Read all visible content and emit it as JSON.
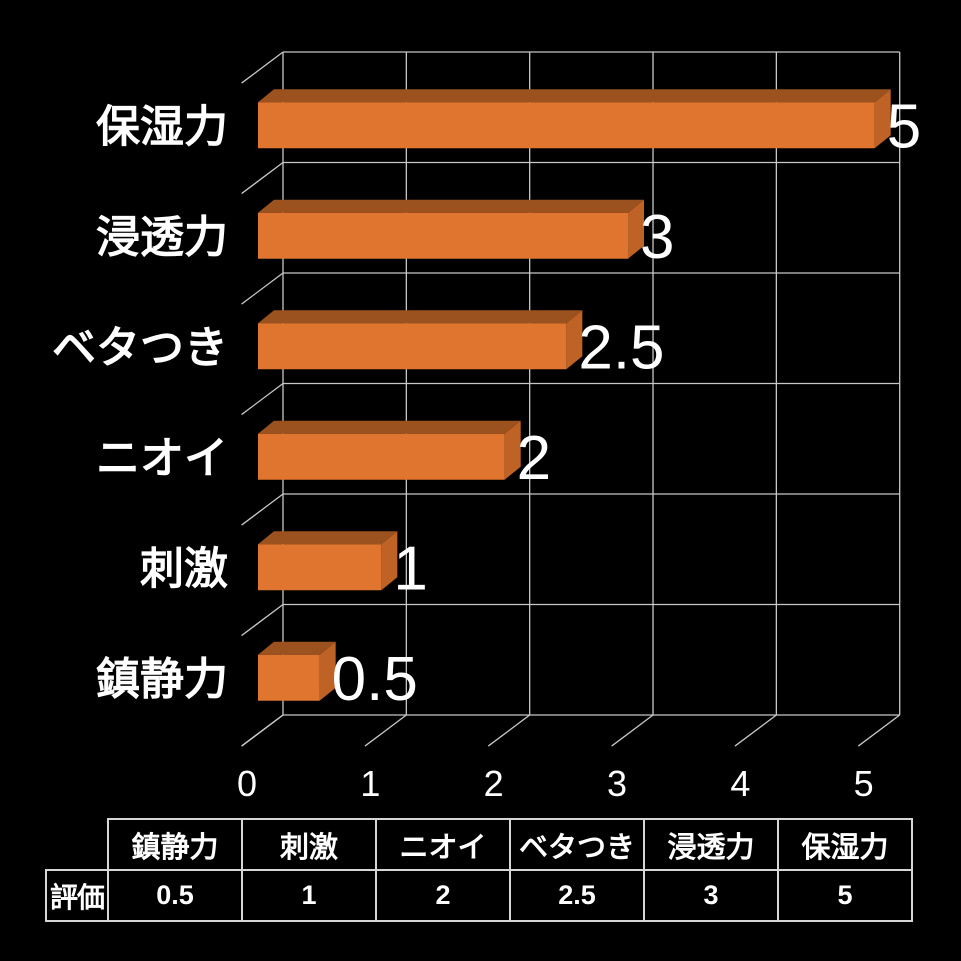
{
  "chart_data": {
    "type": "bar",
    "style": "3d-horizontal",
    "title": "",
    "xlabel": "",
    "ylabel": "",
    "xlim": [
      0,
      5
    ],
    "grid": true,
    "categories": [
      "保湿力",
      "浸透力",
      "ベタつき",
      "ニオイ",
      "刺激",
      "鎮静力"
    ],
    "values": [
      5,
      3,
      2.5,
      2,
      1,
      0.5
    ],
    "data_labels": [
      "5",
      "3",
      "2.5",
      "2",
      "1",
      "0.5"
    ],
    "x_tick_labels": [
      "0",
      "1",
      "2",
      "3",
      "4",
      "5"
    ],
    "series_name": "評価",
    "colors": {
      "background": "#000000",
      "bar_front": "#df752f",
      "bar_top": "#9b521e",
      "bar_side": "#be6226",
      "grid_line": "#c7c7c7",
      "text": "#ffffff",
      "table_border": "#d6d6d6"
    }
  },
  "table": {
    "row_header": "評価",
    "columns": [
      {
        "label": "鎮静力",
        "value": "0.5"
      },
      {
        "label": "刺激",
        "value": "1"
      },
      {
        "label": "ニオイ",
        "value": "2"
      },
      {
        "label": "ベタつき",
        "value": "2.5"
      },
      {
        "label": "浸透力",
        "value": "3"
      },
      {
        "label": "保湿力",
        "value": "5"
      }
    ]
  }
}
